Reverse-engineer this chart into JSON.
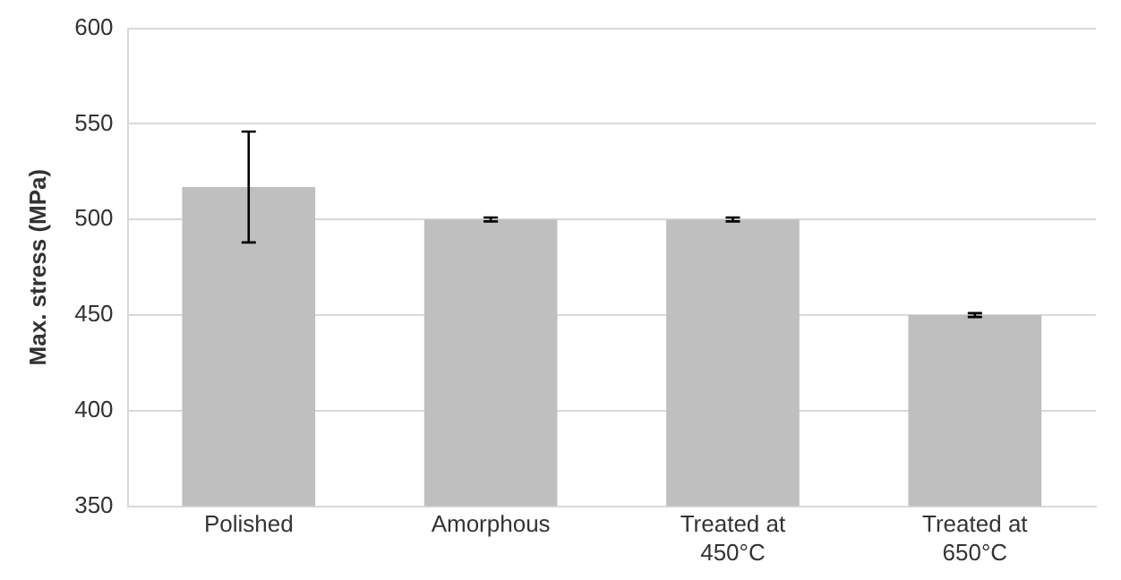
{
  "chart_data": {
    "type": "bar",
    "ylabel": "Max. stress (MPa)",
    "categories": [
      "Polished",
      "Amorphous",
      "Treated at 450°C",
      "Treated at 650°C"
    ],
    "values": [
      517,
      500,
      500,
      450
    ],
    "errors": [
      29,
      1,
      1,
      1
    ],
    "color": "#bfbfbf",
    "ylim": [
      350,
      600
    ],
    "yticks": [
      350,
      400,
      450,
      500,
      550,
      600
    ],
    "grid": "y",
    "legend": false
  }
}
